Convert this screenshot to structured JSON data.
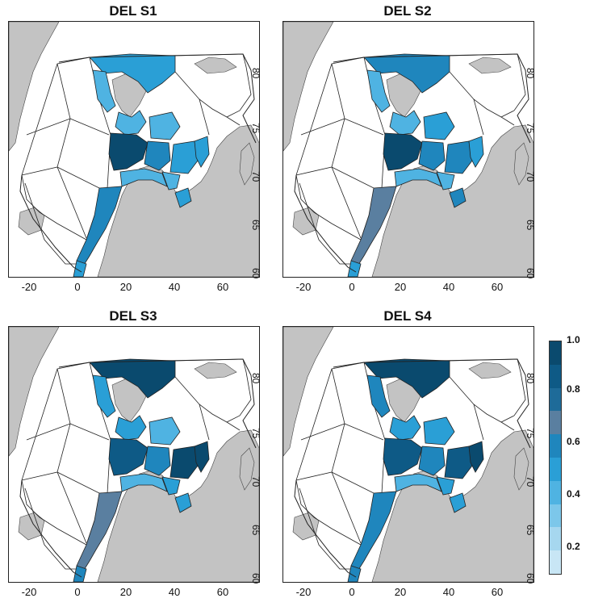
{
  "panels": [
    {
      "title": "DEL S1",
      "values": [
        0.45,
        0.3,
        0.35,
        0.95,
        0.5,
        0.35,
        0.45,
        0.3,
        0.3,
        0.55,
        0.45,
        0.4,
        0.45
      ]
    },
    {
      "title": "DEL S2",
      "values": [
        0.5,
        0.3,
        0.35,
        0.95,
        0.55,
        0.4,
        0.5,
        0.35,
        0.3,
        0.6,
        0.45,
        0.45,
        0.5
      ]
    },
    {
      "title": "DEL S3",
      "values": [
        0.95,
        0.45,
        0.4,
        0.85,
        0.5,
        0.35,
        0.9,
        0.4,
        0.3,
        0.6,
        0.55,
        0.95,
        0.45
      ]
    },
    {
      "title": "DEL S4",
      "values": [
        0.95,
        0.5,
        0.4,
        0.85,
        0.55,
        0.4,
        0.85,
        0.4,
        0.3,
        0.55,
        0.55,
        0.95,
        0.45
      ]
    }
  ],
  "x_ticks": [
    "-20",
    "0",
    "20",
    "40",
    "60"
  ],
  "y_ticks": [
    "60",
    "65",
    "70",
    "75",
    "80"
  ],
  "legend": {
    "labels": [
      "1.0",
      "0.8",
      "0.6",
      "0.4",
      "0.2"
    ],
    "colors": [
      "#c8e6f5",
      "#a6d7ef",
      "#7cc7ea",
      "#4fb3e2",
      "#2a9fd6",
      "#1f86bd",
      "#5a7fa0",
      "#1e6b99",
      "#0e5a86",
      "#0a4a6e"
    ]
  },
  "colors": {
    "land": "#c3c3c3",
    "sea": "#ffffff",
    "outline": "#222222"
  }
}
